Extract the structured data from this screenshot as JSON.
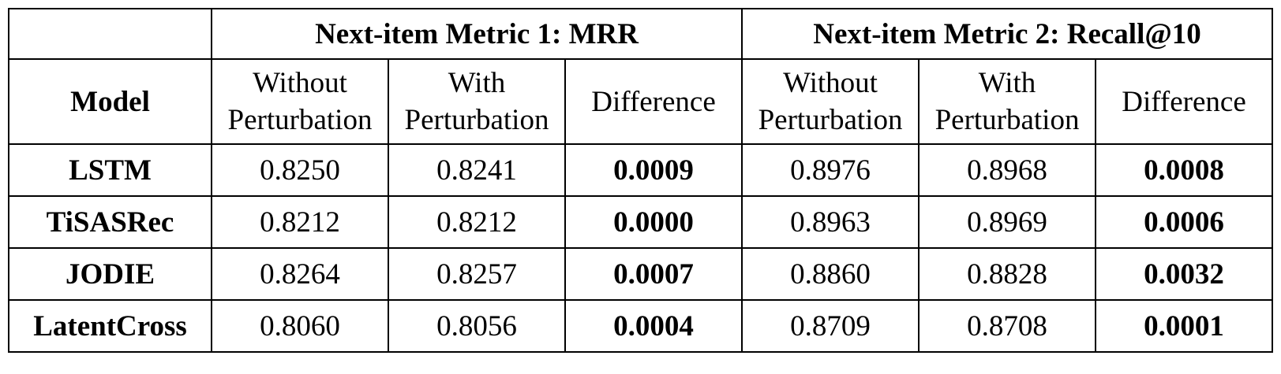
{
  "table": {
    "corner": "",
    "group_headers": [
      "Next-item Metric 1: MRR",
      "Next-item Metric 2: Recall@10"
    ],
    "model_header": "Model",
    "sub_headers": [
      {
        "line1": "Without",
        "line2": "Perturbation"
      },
      {
        "line1": "With",
        "line2": "Perturbation"
      },
      {
        "line1": "Difference",
        "line2": ""
      },
      {
        "line1": "Without",
        "line2": "Perturbation"
      },
      {
        "line1": "With",
        "line2": "Perturbation"
      },
      {
        "line1": "Difference",
        "line2": ""
      }
    ],
    "rows": [
      {
        "model": "LSTM",
        "cells": [
          "0.8250",
          "0.8241",
          "0.0009",
          "0.8976",
          "0.8968",
          "0.0008"
        ]
      },
      {
        "model": "TiSASRec",
        "cells": [
          "0.8212",
          "0.8212",
          "0.0000",
          "0.8963",
          "0.8969",
          "0.0006"
        ]
      },
      {
        "model": "JODIE",
        "cells": [
          "0.8264",
          "0.8257",
          "0.0007",
          "0.8860",
          "0.8828",
          "0.0032"
        ]
      },
      {
        "model": "LatentCross",
        "cells": [
          "0.8060",
          "0.8056",
          "0.0004",
          "0.8709",
          "0.8708",
          "0.0001"
        ]
      }
    ]
  }
}
